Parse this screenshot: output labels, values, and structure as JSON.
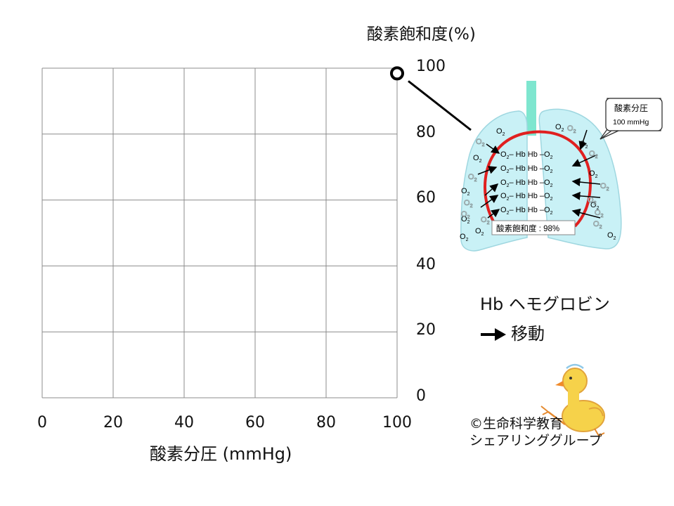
{
  "chart_data": {
    "type": "scatter",
    "title": "",
    "xlabel": "酸素分圧 (mmHg)",
    "ylabel": "酸素飽和度(%)",
    "xlim": [
      0,
      100
    ],
    "ylim": [
      0,
      100
    ],
    "x_ticks": [
      "0",
      "20",
      "40",
      "60",
      "80",
      "100"
    ],
    "y_ticks": [
      "100",
      "80",
      "60",
      "40",
      "20",
      "0"
    ],
    "grid": true,
    "series": [
      {
        "points": [
          {
            "x": 100,
            "y": 98
          }
        ]
      }
    ]
  },
  "illustration": {
    "callout_title": "酸素分圧",
    "callout_value": "100 mmHg",
    "saturation_label": "酸素飽和度 : 98%",
    "hb_text": "Hb Hb",
    "o2_text": "O",
    "o2_sub": "2"
  },
  "legend": {
    "hb_label": "Hb ヘモグロビン",
    "arrow_label": "移動"
  },
  "credit": {
    "line1": "©生命科学教育",
    "line2": "シェアリンググループ"
  },
  "colors": {
    "lung_fill": "#c9f1f6",
    "lung_stroke": "#9fd7e0",
    "trachea": "#7ee6cf",
    "vessel": "#e02020",
    "grid": "#8c8c8c"
  }
}
